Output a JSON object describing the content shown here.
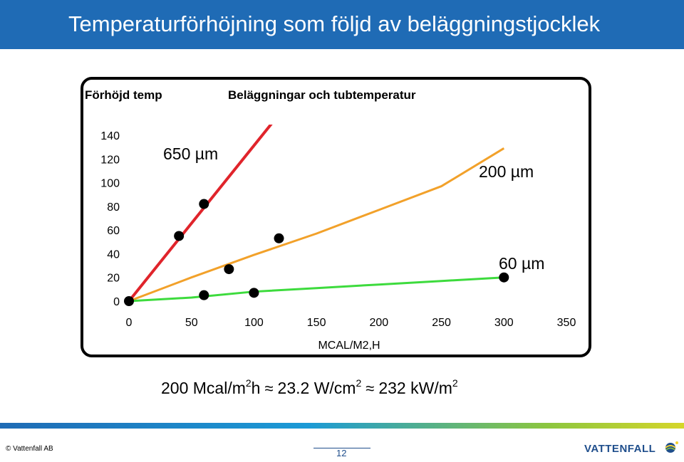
{
  "slide": {
    "title": "Temperaturförhöjning  som följd av beläggningstjocklek",
    "formula": {
      "part1": "200 Mcal/m",
      "sup1": "2",
      "part2": "h",
      "approx": "≈",
      "part3": "23.2 W/cm",
      "sup2": "2",
      "part4": "232 kW/m",
      "sup3": "2"
    },
    "footer": {
      "copyright": "© Vattenfall AB",
      "page_number": "12",
      "logo_text": "VATTENFALL"
    },
    "colors": {
      "title_bar": "#1f6bb5",
      "red_series": "#e0242b",
      "orange_series": "#f2a12a",
      "green_series": "#3ddb3d"
    }
  },
  "chart_data": {
    "type": "line",
    "title": "Beläggningar och tubtemperatur",
    "ylabel": "Förhöjd temp",
    "xlabel": "MCAL/M2,H",
    "xlim": [
      0,
      350
    ],
    "ylim": [
      0,
      140
    ],
    "xticks": [
      "0",
      "50",
      "100",
      "150",
      "200",
      "250",
      "300",
      "350"
    ],
    "yticks": [
      "0",
      "20",
      "40",
      "60",
      "80",
      "100",
      "120",
      "140"
    ],
    "grid": false,
    "series": [
      {
        "name": "650 µm",
        "color": "#e0242b",
        "x": [
          0,
          115
        ],
        "y": [
          0,
          151
        ]
      },
      {
        "name": "200 µm",
        "color": "#f2a12a",
        "x": [
          0,
          50,
          100,
          150,
          200,
          250,
          300
        ],
        "y": [
          0,
          20,
          39,
          57,
          77,
          97,
          129
        ]
      },
      {
        "name": "60 µm",
        "color": "#3ddb3d",
        "x": [
          0,
          50,
          100,
          150,
          200,
          250,
          300
        ],
        "y": [
          0,
          3,
          8,
          11,
          14,
          17,
          20
        ]
      }
    ],
    "points": [
      {
        "x": 0,
        "y": 0
      },
      {
        "x": 40,
        "y": 55
      },
      {
        "x": 60,
        "y": 82
      },
      {
        "x": 60,
        "y": 5
      },
      {
        "x": 80,
        "y": 27
      },
      {
        "x": 100,
        "y": 7
      },
      {
        "x": 120,
        "y": 53
      },
      {
        "x": 300,
        "y": 20
      }
    ]
  }
}
